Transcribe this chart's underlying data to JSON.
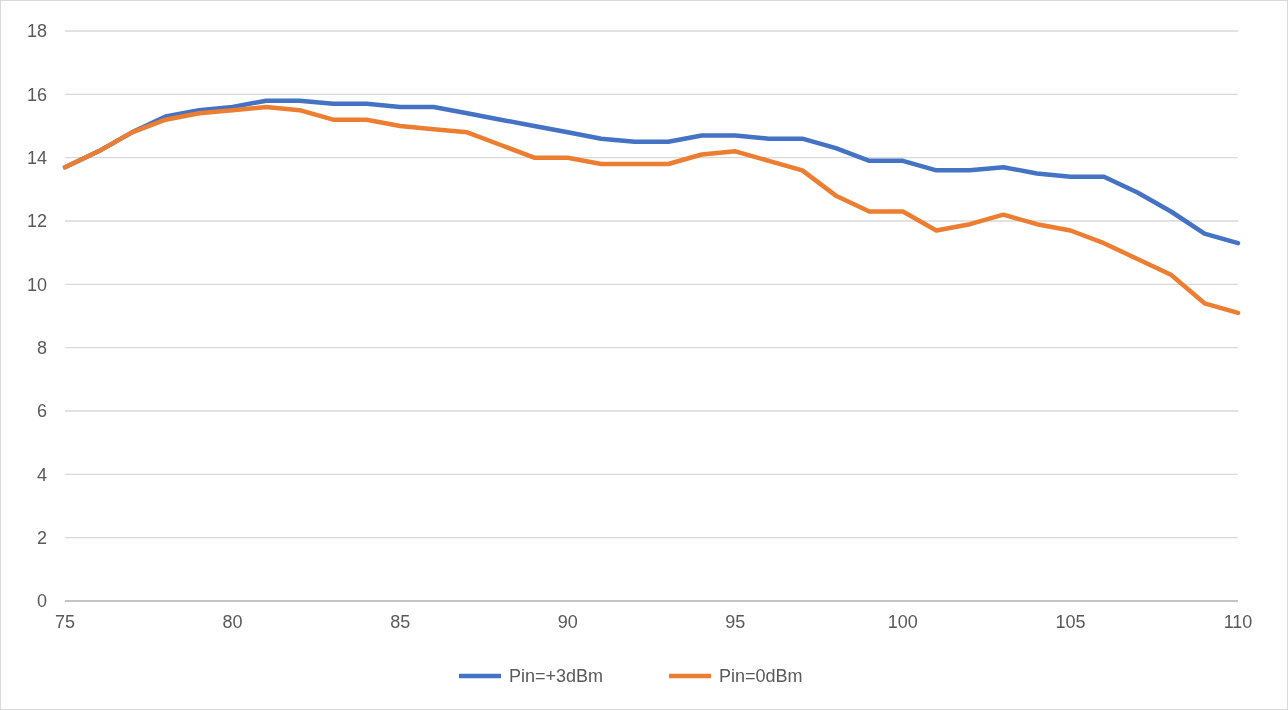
{
  "chart_data": {
    "type": "line",
    "x": [
      75,
      76,
      77,
      78,
      79,
      80,
      81,
      82,
      83,
      84,
      85,
      86,
      87,
      88,
      89,
      90,
      91,
      92,
      93,
      94,
      95,
      96,
      97,
      98,
      99,
      100,
      101,
      102,
      103,
      104,
      105,
      106,
      107,
      108,
      109,
      110
    ],
    "series": [
      {
        "name": "Pin=+3dBm",
        "color": "#4472c4",
        "values": [
          13.7,
          14.2,
          14.8,
          15.3,
          15.5,
          15.6,
          15.8,
          15.8,
          15.7,
          15.7,
          15.6,
          15.6,
          15.4,
          15.2,
          15.0,
          14.8,
          14.6,
          14.5,
          14.5,
          14.7,
          14.7,
          14.6,
          14.6,
          14.3,
          13.9,
          13.9,
          13.6,
          13.6,
          13.7,
          13.5,
          13.4,
          13.4,
          12.9,
          12.3,
          11.6,
          11.3
        ]
      },
      {
        "name": "Pin=0dBm",
        "color": "#ed7d31",
        "values": [
          13.7,
          14.2,
          14.8,
          15.2,
          15.4,
          15.5,
          15.6,
          15.5,
          15.2,
          15.2,
          15.0,
          14.9,
          14.8,
          14.4,
          14.0,
          14.0,
          13.8,
          13.8,
          13.8,
          14.1,
          14.2,
          13.9,
          13.6,
          12.8,
          12.3,
          12.3,
          11.7,
          11.9,
          12.2,
          11.9,
          11.7,
          11.3,
          10.8,
          10.3,
          9.4,
          9.1
        ]
      }
    ],
    "xlim": [
      75,
      110
    ],
    "xticks": [
      75,
      80,
      85,
      90,
      95,
      100,
      105,
      110
    ],
    "ylim": [
      0,
      18
    ],
    "yticks": [
      0,
      2,
      4,
      6,
      8,
      10,
      12,
      14,
      16,
      18
    ],
    "grid": "y",
    "legend": "bottom",
    "marker": "none",
    "line_style": "solid"
  }
}
